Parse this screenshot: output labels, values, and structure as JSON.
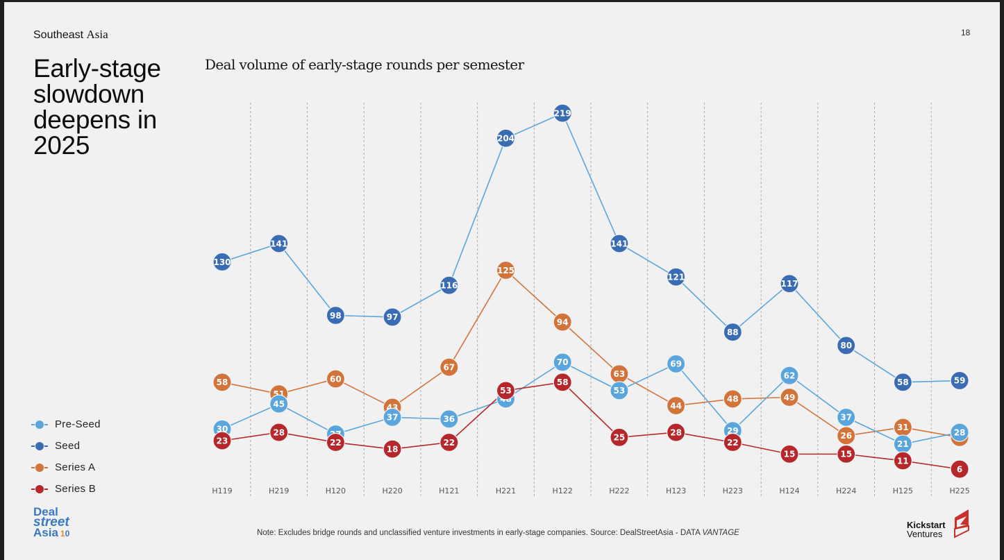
{
  "page": {
    "region_label_sans": "Southeast",
    "region_label_serif": "Asia",
    "page_number": "18",
    "headline_lines": [
      "Early-stage",
      "slowdown",
      "deepens in",
      "2025"
    ],
    "note_prefix": "Note: Excludes bridge rounds and unclassified venture investments in early-stage companies. Source: DealStreetAsia - DATA ",
    "note_italic": "VANTAGE",
    "logo_left": {
      "line1": "Deal",
      "line2": "street",
      "line3": "Asia",
      "badge_one": "1",
      "badge_zero": "0"
    },
    "logo_right": {
      "line1": "Kickstart",
      "line2": "Ventures",
      "mark_color": "#c9302c"
    }
  },
  "chart_data": {
    "type": "line",
    "title": "Deal volume of early-stage rounds per semester",
    "xlabel": "",
    "ylabel": "",
    "ylim": [
      0,
      230
    ],
    "grid": "vertical-dashed",
    "legend_position": "bottom-left",
    "categories": [
      "H119",
      "H219",
      "H120",
      "H220",
      "H121",
      "H221",
      "H122",
      "H222",
      "H123",
      "H223",
      "H124",
      "H224",
      "H125",
      "H225"
    ],
    "series": [
      {
        "name": "Pre-Seed",
        "line_color": "#5aa6dc",
        "marker_color": "#5aa6dc",
        "values": [
          30,
          45,
          27,
          37,
          36,
          48,
          70,
          53,
          69,
          29,
          62,
          37,
          21,
          28
        ]
      },
      {
        "name": "Seed",
        "line_color": "#5aa6dc",
        "marker_color": "#3a6cb4",
        "values": [
          130,
          141,
          98,
          97,
          116,
          204,
          219,
          141,
          121,
          88,
          117,
          80,
          58,
          59
        ]
      },
      {
        "name": "Series A",
        "line_color": "#d2743a",
        "marker_color": "#d2743a",
        "values": [
          58,
          51,
          60,
          43,
          67,
          125,
          94,
          63,
          44,
          48,
          49,
          26,
          31,
          25
        ]
      },
      {
        "name": "Series B",
        "line_color": "#b5272a",
        "marker_color": "#b5272a",
        "values": [
          23,
          28,
          22,
          18,
          22,
          53,
          58,
          25,
          28,
          22,
          15,
          15,
          11,
          6
        ]
      }
    ]
  }
}
